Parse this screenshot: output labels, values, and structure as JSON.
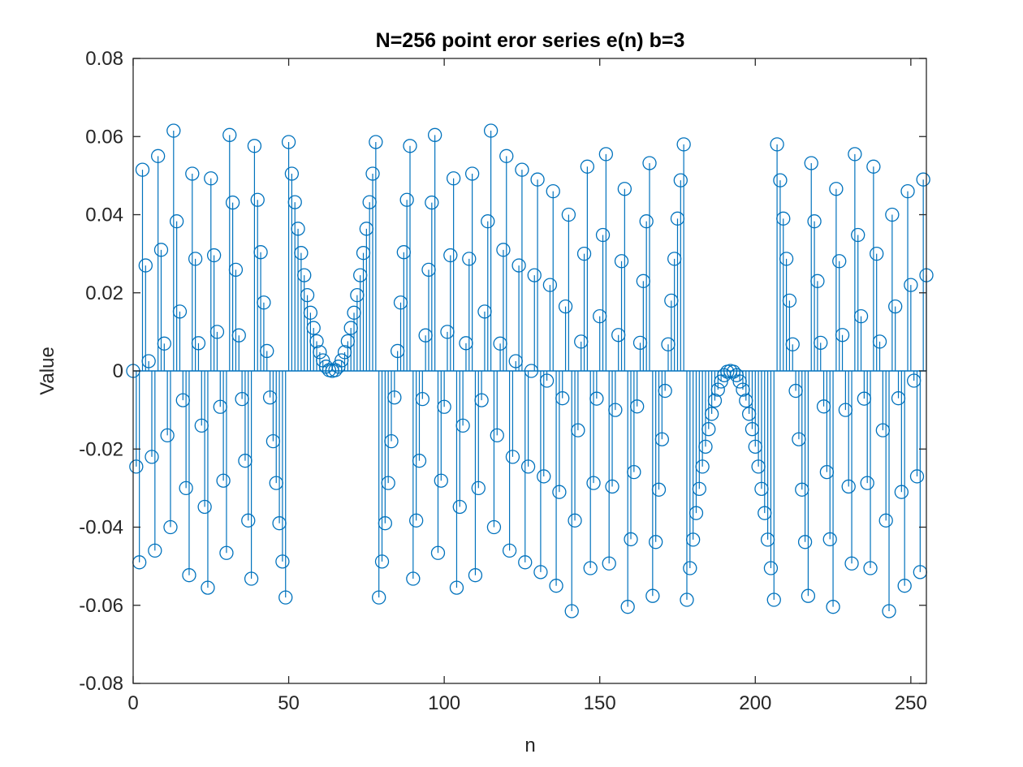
{
  "chart_data": {
    "type": "stem",
    "title": "N=256 point eror series e(n) b=3",
    "xlabel": "n",
    "ylabel": "Value",
    "xlim": [
      0,
      255
    ],
    "ylim": [
      -0.08,
      0.08
    ],
    "xticks": [
      0,
      50,
      100,
      150,
      200,
      250
    ],
    "xtick_labels": [
      "0",
      "50",
      "100",
      "150",
      "200",
      "250"
    ],
    "yticks": [
      -0.08,
      -0.06,
      -0.04,
      -0.02,
      0,
      0.02,
      0.04,
      0.06,
      0.08
    ],
    "ytick_labels": [
      "-0.08",
      "-0.06",
      "-0.04",
      "-0.02",
      "0",
      "0.02",
      "0.04",
      "0.06",
      "0.08"
    ],
    "grid": false,
    "color": "#0072bd",
    "x_start": 0,
    "values": [
      0.0,
      -0.0245,
      -0.049,
      0.0515,
      0.027,
      0.0025,
      -0.022,
      -0.046,
      0.055,
      0.031,
      0.007,
      -0.0165,
      -0.04,
      0.0615,
      0.0383,
      0.0152,
      -0.0075,
      -0.03,
      -0.0523,
      0.0505,
      0.0287,
      0.0071,
      -0.014,
      -0.0348,
      -0.0555,
      0.0493,
      0.0296,
      0.01,
      -0.0092,
      -0.0281,
      -0.0466,
      0.0604,
      0.0431,
      0.0259,
      0.0091,
      -0.0072,
      -0.023,
      -0.0383,
      -0.0532,
      0.0576,
      0.0438,
      0.0304,
      0.0175,
      0.0051,
      -0.0068,
      -0.018,
      -0.0287,
      -0.039,
      -0.0488,
      -0.058,
      0.0586,
      0.0505,
      0.0432,
      0.0364,
      0.0302,
      0.0245,
      0.0194,
      0.0149,
      0.011,
      0.0076,
      0.0048,
      0.0027,
      0.0011,
      0.0002,
      0.0,
      0.0002,
      0.0011,
      0.0027,
      0.0048,
      0.0076,
      0.011,
      0.0149,
      0.0194,
      0.0245,
      0.0302,
      0.0364,
      0.0432,
      0.0505,
      0.0586,
      -0.058,
      -0.0488,
      -0.039,
      -0.0287,
      -0.018,
      -0.0068,
      0.0051,
      0.0175,
      0.0304,
      0.0438,
      0.0576,
      -0.0532,
      -0.0383,
      -0.023,
      -0.0072,
      0.0091,
      0.0259,
      0.0431,
      0.0604,
      -0.0466,
      -0.0281,
      -0.0092,
      0.01,
      0.0296,
      0.0493,
      -0.0555,
      -0.0348,
      -0.014,
      0.0071,
      0.0287,
      0.0505,
      -0.0523,
      -0.03,
      -0.0075,
      0.0152,
      0.0383,
      0.0615,
      -0.04,
      -0.0165,
      0.007,
      0.031,
      0.055,
      -0.046,
      -0.022,
      0.0025,
      0.027,
      0.0515,
      -0.049,
      -0.0245,
      0.0,
      0.0245,
      0.049,
      -0.0515,
      -0.027,
      -0.0025,
      0.022,
      0.046,
      -0.055,
      -0.031,
      -0.007,
      0.0165,
      0.04,
      -0.0615,
      -0.0383,
      -0.0152,
      0.0075,
      0.03,
      0.0523,
      -0.0505,
      -0.0287,
      -0.0071,
      0.014,
      0.0348,
      0.0555,
      -0.0493,
      -0.0296,
      -0.01,
      0.0092,
      0.0281,
      0.0466,
      -0.0604,
      -0.0431,
      -0.0259,
      -0.0091,
      0.0072,
      0.023,
      0.0383,
      0.0532,
      -0.0576,
      -0.0438,
      -0.0304,
      -0.0175,
      -0.0051,
      0.0068,
      0.018,
      0.0287,
      0.039,
      0.0488,
      0.058,
      -0.0586,
      -0.0505,
      -0.0432,
      -0.0364,
      -0.0302,
      -0.0245,
      -0.0194,
      -0.0149,
      -0.011,
      -0.0076,
      -0.0048,
      -0.0027,
      -0.0011,
      -0.0002,
      0.0,
      -0.0002,
      -0.0011,
      -0.0027,
      -0.0048,
      -0.0076,
      -0.011,
      -0.0149,
      -0.0194,
      -0.0245,
      -0.0302,
      -0.0364,
      -0.0432,
      -0.0505,
      -0.0586,
      0.058,
      0.0488,
      0.039,
      0.0287,
      0.018,
      0.0068,
      -0.0051,
      -0.0175,
      -0.0304,
      -0.0438,
      -0.0576,
      0.0532,
      0.0383,
      0.023,
      0.0072,
      -0.0091,
      -0.0259,
      -0.0431,
      -0.0604,
      0.0466,
      0.0281,
      0.0092,
      -0.01,
      -0.0296,
      -0.0493,
      0.0555,
      0.0348,
      0.014,
      -0.0071,
      -0.0287,
      -0.0505,
      0.0523,
      0.03,
      0.0075,
      -0.0152,
      -0.0383,
      -0.0615,
      0.04,
      0.0165,
      -0.007,
      -0.031,
      -0.055,
      0.046,
      0.022,
      -0.0025,
      -0.027,
      -0.0515,
      0.049,
      0.0245
    ]
  }
}
